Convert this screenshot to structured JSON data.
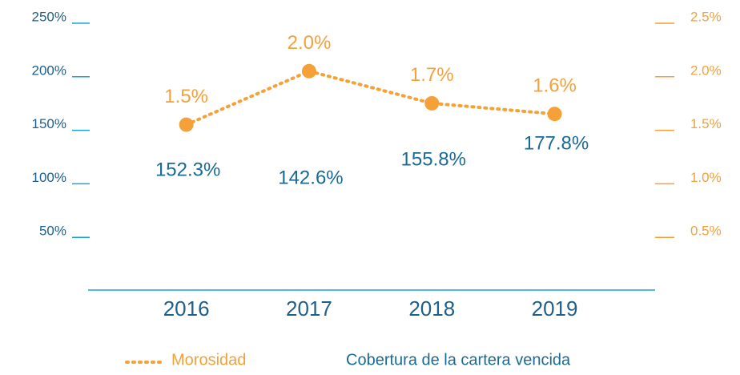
{
  "chart_data": {
    "type": "line",
    "categories": [
      "2016",
      "2017",
      "2018",
      "2019"
    ],
    "series": [
      {
        "name": "Morosidad",
        "color": "#f4a13a",
        "axis": "y2",
        "values": [
          1.5,
          2.0,
          1.7,
          1.6
        ],
        "value_labels": [
          "1.5%",
          "2.0%",
          "1.7%",
          "1.6%"
        ]
      },
      {
        "name": "Cobertura de la cartera vencida",
        "color": "#1a6a96",
        "values": [
          152.3,
          142.6,
          155.8,
          177.8
        ],
        "value_labels": [
          "152.3%",
          "142.6%",
          "155.8%",
          "177.8%"
        ]
      }
    ],
    "ylim": [
      0,
      250
    ],
    "yticks": [
      {
        "value": 50,
        "label": "50%"
      },
      {
        "value": 100,
        "label": "100%"
      },
      {
        "value": 150,
        "label": "150%"
      },
      {
        "value": 200,
        "label": "200%"
      },
      {
        "value": 250,
        "label": "250%"
      }
    ],
    "y2lim": [
      0,
      2.5
    ],
    "y2ticks": [
      {
        "value": 0.5,
        "label": "0.5%"
      },
      {
        "value": 1.0,
        "label": "1.0%"
      },
      {
        "value": 1.5,
        "label": "1.5%"
      },
      {
        "value": 2.0,
        "label": "2.0%"
      },
      {
        "value": 2.5,
        "label": "2.5%"
      }
    ],
    "legend": "bottom"
  }
}
